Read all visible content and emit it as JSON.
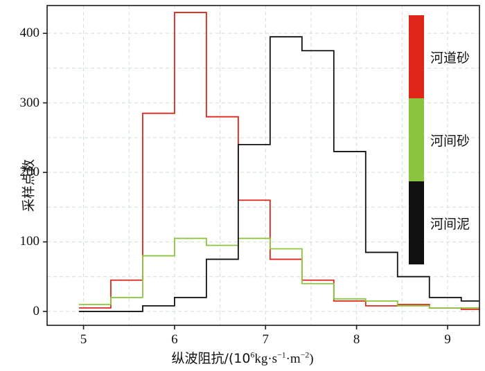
{
  "chart_data": {
    "type": "step-histogram",
    "title": "",
    "ylabel": "采样点数",
    "xlabel_parts": [
      {
        "t": "纵波阻抗/(10",
        "sup": false
      },
      {
        "t": "6",
        "sup": true
      },
      {
        "t": "kg·s",
        "sup": false
      },
      {
        "t": "−1",
        "sup": true
      },
      {
        "t": "·m",
        "sup": false
      },
      {
        "t": "−2",
        "sup": true
      },
      {
        "t": ")",
        "sup": false
      }
    ],
    "xlim": [
      4.6,
      9.35
    ],
    "ylim": [
      -20,
      440
    ],
    "x_ticks": [
      5,
      6,
      7,
      8,
      9
    ],
    "y_ticks": [
      0,
      100,
      200,
      300,
      400
    ],
    "grid": {
      "x_minor_step": 0.5,
      "y_minor_step": 50,
      "color": "#cfe2cf",
      "dash": "5 4"
    },
    "bin_edges": [
      4.95,
      5.3,
      5.65,
      6.0,
      6.35,
      6.7,
      7.05,
      7.4,
      7.75,
      8.1,
      8.45,
      8.8,
      9.15,
      9.35
    ],
    "series": [
      {
        "name": "河道砂",
        "color": "#e0251b",
        "values": [
          5,
          45,
          285,
          430,
          280,
          160,
          75,
          45,
          15,
          8,
          10,
          5,
          3
        ]
      },
      {
        "name": "河间砂",
        "color": "#8bc53f",
        "values": [
          10,
          20,
          80,
          105,
          95,
          105,
          90,
          40,
          18,
          15,
          8,
          5,
          5
        ]
      },
      {
        "name": "河间泥",
        "color": "#111111",
        "values": [
          0,
          0,
          8,
          20,
          75,
          240,
          395,
          375,
          230,
          85,
          50,
          20,
          15
        ]
      }
    ]
  },
  "legend": {
    "items": [
      {
        "label": "河道砂",
        "color": "#e0251b"
      },
      {
        "label": "河间砂",
        "color": "#8bc53f"
      },
      {
        "label": "河间泥",
        "color": "#111111"
      }
    ]
  }
}
